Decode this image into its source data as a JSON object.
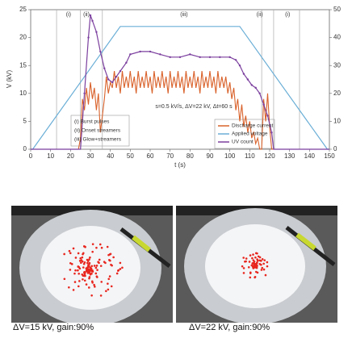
{
  "chart_data": {
    "type": "line",
    "xlabel": "t (s)",
    "ylabel": "V (kV)",
    "xlim": [
      0,
      150
    ],
    "xticks": [
      0,
      10,
      20,
      30,
      40,
      50,
      60,
      70,
      80,
      90,
      100,
      110,
      120,
      130,
      140,
      150
    ],
    "ylim": [
      0,
      25
    ],
    "yticks": [
      0,
      5,
      10,
      15,
      20,
      25
    ],
    "y2lim": [
      0,
      50
    ],
    "y2ticks": [
      0,
      10,
      20,
      30,
      40,
      50
    ],
    "region_lines": [
      13,
      25,
      36,
      116,
      122,
      135
    ],
    "annotations": [
      {
        "text": "(i)",
        "x": 19
      },
      {
        "text": "(ii)",
        "x": 28
      },
      {
        "text": "(iii)",
        "x": 77
      },
      {
        "text": "(ii)",
        "x": 115
      },
      {
        "text": "(i)",
        "x": 129
      }
    ],
    "note": "s=0.5 kV/s, ΔV=22 kV, Δt=60 s",
    "regions_legend": [
      "(i) Burst pulses",
      "(ii) Onset streamers",
      "(iii) Glow+streamers"
    ],
    "series": [
      {
        "name": "Discharge current",
        "color": "#d9622b",
        "x": [
          0,
          24,
          25,
          26,
          27,
          28,
          29,
          30,
          31,
          32,
          33,
          34,
          35,
          36,
          37,
          38,
          39,
          40,
          41,
          42,
          43,
          44,
          45,
          46,
          47,
          48,
          49,
          50,
          51,
          52,
          53,
          54,
          55,
          56,
          57,
          58,
          59,
          60,
          61,
          62,
          63,
          64,
          65,
          66,
          67,
          68,
          69,
          70,
          71,
          72,
          73,
          74,
          75,
          76,
          77,
          78,
          79,
          80,
          81,
          82,
          83,
          84,
          85,
          86,
          87,
          88,
          89,
          90,
          91,
          92,
          93,
          94,
          95,
          96,
          97,
          98,
          99,
          100,
          101,
          102,
          103,
          104,
          105,
          106,
          107,
          108,
          109,
          110,
          111,
          112,
          113,
          114,
          115,
          116,
          117,
          118,
          119,
          120,
          121,
          122,
          150
        ],
        "values": [
          0,
          0,
          2,
          9,
          7,
          11,
          8,
          12,
          9,
          11,
          7,
          10,
          3,
          6,
          9,
          13,
          10,
          12,
          11,
          14,
          11,
          13,
          10,
          14,
          11,
          13,
          11,
          14,
          11,
          13,
          10,
          14,
          11,
          13,
          11,
          14,
          11,
          13,
          10,
          14,
          11,
          13,
          11,
          14,
          11,
          13,
          10,
          14,
          11,
          13,
          11,
          14,
          11,
          13,
          10,
          14,
          11,
          13,
          11,
          14,
          11,
          13,
          10,
          14,
          11,
          13,
          11,
          14,
          11,
          13,
          10,
          14,
          11,
          13,
          11,
          13,
          10,
          12,
          9,
          11,
          7,
          9,
          5,
          8,
          4,
          6,
          3,
          5,
          2,
          3,
          1,
          2,
          0,
          0,
          9,
          5,
          10,
          4,
          0,
          0,
          0
        ]
      },
      {
        "name": "Applied voltage",
        "color": "#6aaed6",
        "x": [
          0,
          1,
          45,
          105,
          149,
          150
        ],
        "values": [
          0,
          0,
          22,
          22,
          0,
          0
        ]
      },
      {
        "name": "UV count",
        "color": "#7b3f9e",
        "axis": "y2",
        "x": [
          0,
          25,
          27,
          29,
          30,
          31,
          33,
          35,
          37,
          39,
          41,
          43,
          45,
          48,
          50,
          55,
          60,
          65,
          70,
          75,
          80,
          85,
          90,
          95,
          100,
          103,
          105,
          107,
          109,
          111,
          113,
          115,
          117,
          119,
          121,
          122,
          150
        ],
        "values": [
          0,
          0,
          20,
          40,
          48,
          46,
          42,
          35,
          29,
          25,
          24,
          26,
          28,
          31,
          34,
          35,
          35,
          34,
          33,
          33,
          34,
          33,
          33,
          33,
          33,
          32,
          30,
          27,
          25,
          23,
          22,
          20,
          16,
          12,
          6,
          0,
          0
        ]
      }
    ]
  },
  "photos": [
    {
      "caption": "ΔV=15 kV, gain:90%"
    },
    {
      "caption": "ΔV=22 kV, gain:90%"
    }
  ]
}
